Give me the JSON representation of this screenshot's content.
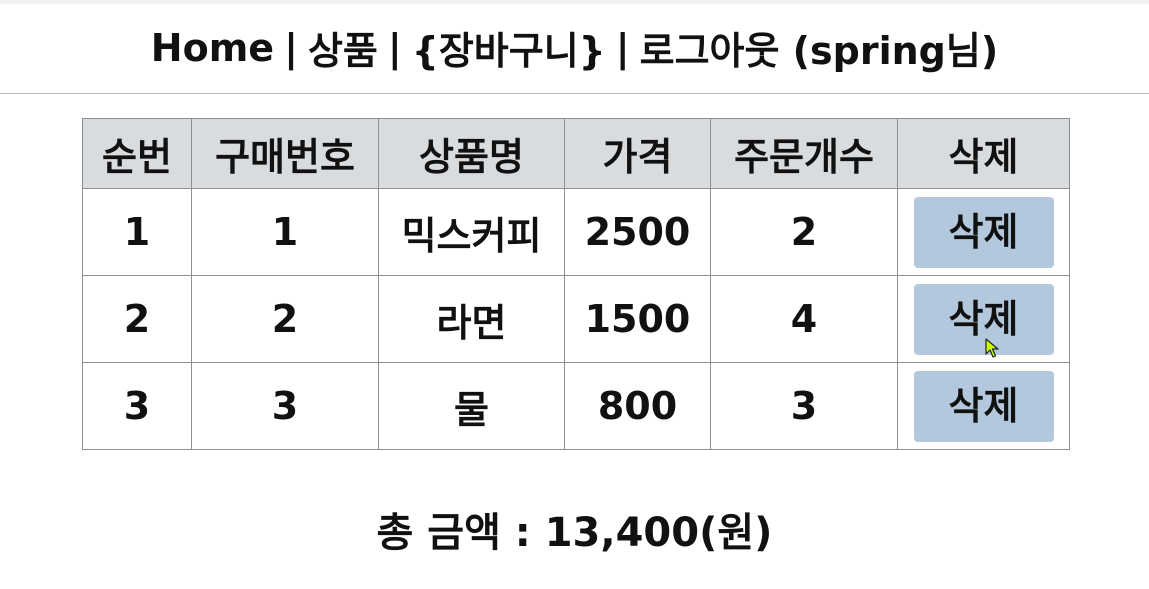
{
  "nav": {
    "home": "Home",
    "product": "상품",
    "cart": "{장바구니}",
    "logout": "로그아웃 (spring님)",
    "separator": "|"
  },
  "table": {
    "headers": [
      "순번",
      "구매번호",
      "상품명",
      "가격",
      "주문개수",
      "삭제"
    ],
    "rows": [
      {
        "seq": "1",
        "order_no": "1",
        "name": "믹스커피",
        "price": "2500",
        "qty": "2",
        "delete_label": "삭제"
      },
      {
        "seq": "2",
        "order_no": "2",
        "name": "라면",
        "price": "1500",
        "qty": "4",
        "delete_label": "삭제"
      },
      {
        "seq": "3",
        "order_no": "3",
        "name": "물",
        "price": "800",
        "qty": "3",
        "delete_label": "삭제"
      }
    ]
  },
  "total": {
    "text": "총 금액 : 13,400(원)"
  },
  "colors": {
    "header_bg": "#d9dcdf",
    "button_bg": "#b3c8dd",
    "border": "#8f8f8f",
    "cursor": "#c8ff00"
  },
  "icons": {
    "cursor": "mouse-pointer-icon"
  }
}
